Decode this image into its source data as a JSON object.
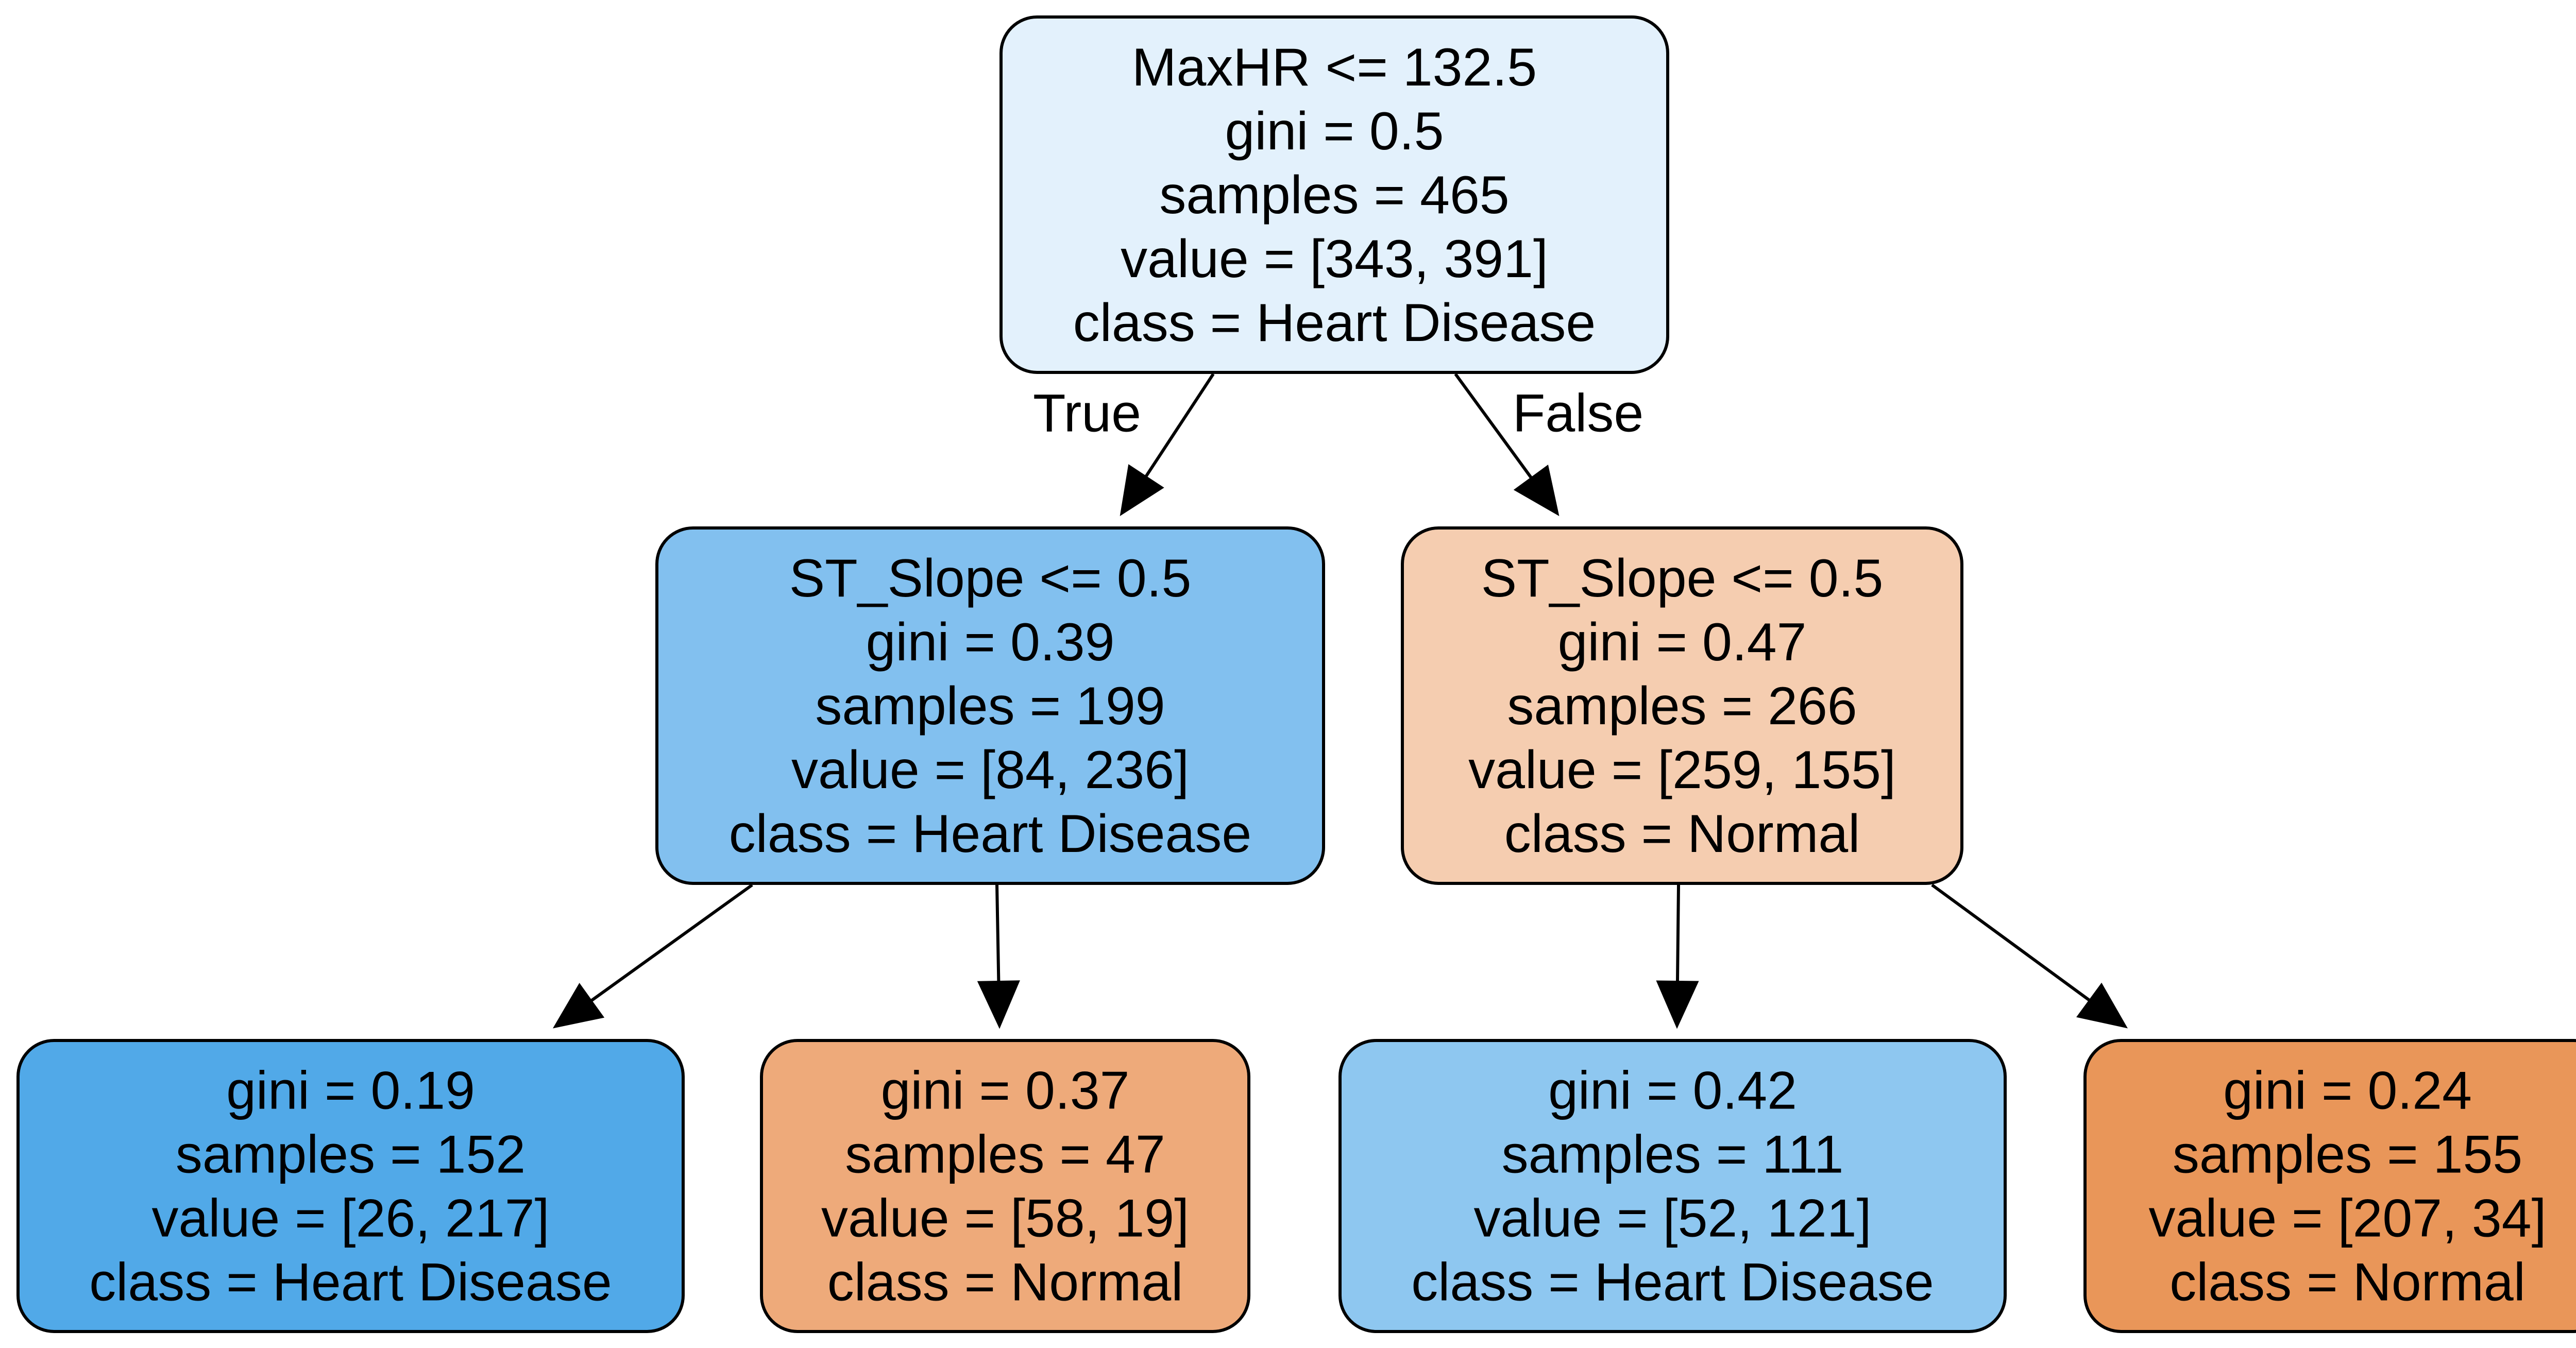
{
  "nodes": [
    {
      "id": "root",
      "lines": [
        "MaxHR <= 132.5",
        "gini = 0.5",
        "samples = 465",
        "value = [343, 391]",
        "class = Heart Disease"
      ],
      "fill": "#e3f1fc"
    },
    {
      "id": "left",
      "lines": [
        "ST_Slope <= 0.5",
        "gini = 0.39",
        "samples = 199",
        "value = [84, 236]",
        "class = Heart Disease"
      ],
      "fill": "#82c0ef"
    },
    {
      "id": "right",
      "lines": [
        "ST_Slope <= 0.5",
        "gini = 0.47",
        "samples = 266",
        "value = [259, 155]",
        "class = Normal"
      ],
      "fill": "#f5cdb0"
    },
    {
      "id": "left-left",
      "lines": [
        "gini = 0.19",
        "samples = 152",
        "value = [26, 217]",
        "class = Heart Disease"
      ],
      "fill": "#51a9e8"
    },
    {
      "id": "left-right",
      "lines": [
        "gini = 0.37",
        "samples = 47",
        "value = [58, 19]",
        "class = Normal"
      ],
      "fill": "#eeaa7a"
    },
    {
      "id": "right-left",
      "lines": [
        "gini = 0.42",
        "samples = 111",
        "value = [52, 121]",
        "class = Heart Disease"
      ],
      "fill": "#8ec7f0"
    },
    {
      "id": "right-right",
      "lines": [
        "gini = 0.24",
        "samples = 155",
        "value = [207, 34]",
        "class = Normal"
      ],
      "fill": "#e99659"
    }
  ],
  "edges": [
    {
      "from": "root",
      "to": "left",
      "label": "True"
    },
    {
      "from": "root",
      "to": "right",
      "label": "False"
    },
    {
      "from": "left",
      "to": "left-left",
      "label": ""
    },
    {
      "from": "left",
      "to": "left-right",
      "label": ""
    },
    {
      "from": "right",
      "to": "right-left",
      "label": ""
    },
    {
      "from": "right",
      "to": "right-right",
      "label": ""
    }
  ]
}
